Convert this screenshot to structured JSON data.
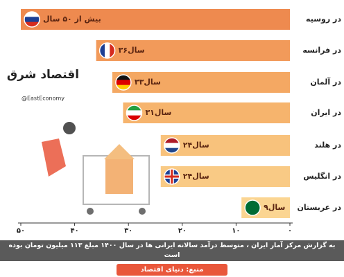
{
  "chart_data": {
    "type": "bar",
    "orientation": "horizontal",
    "categories": [
      "در روسیه",
      "در فرانسه",
      "در آلمان",
      "در ایران",
      "در هلند",
      "در انگلیس",
      "در عربستان"
    ],
    "values": [
      50,
      36,
      33,
      31,
      24,
      24,
      9
    ],
    "value_labels": [
      "بیش از ۵۰ سال",
      "۳۶سال",
      "۳۳سال",
      "۳۱سال",
      "۲۴سال",
      "۲۴سال",
      "۹سال"
    ],
    "colors": [
      "#ee8a4f",
      "#f29a5a",
      "#f4a863",
      "#f6b46d",
      "#f8c27c",
      "#f9ca85",
      "#fbd592"
    ],
    "xlim": [
      0,
      50
    ],
    "xticks": [
      {
        "value": 0,
        "label": "۰"
      },
      {
        "value": 10,
        "label": "۱۰"
      },
      {
        "value": 20,
        "label": "۲۰"
      },
      {
        "value": 30,
        "label": "۳۰"
      },
      {
        "value": 40,
        "label": "۴۰"
      },
      {
        "value": 50,
        "label": "۵۰"
      }
    ],
    "note": "به گزارش مرکز آمار ایران ، متوسط درآمد سالانه ایرانی ها در سال ۱۴۰۰ مبلغ ۱۱۳ میلیون تومان بوده است",
    "source": "منبع: دنیای اقتصاد",
    "logo": "اقتصاد شرق",
    "handle": "@EastEconomy"
  }
}
